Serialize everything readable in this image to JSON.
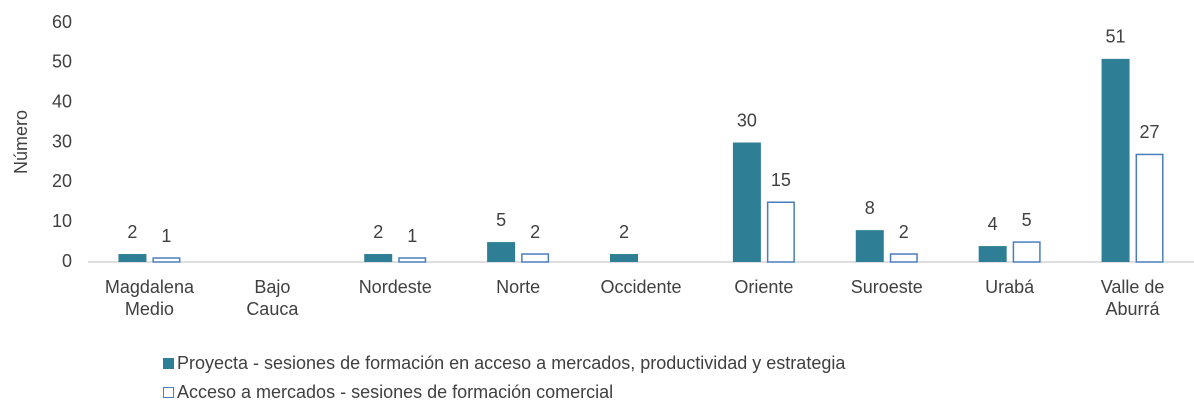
{
  "chart_data": {
    "type": "bar",
    "y_label": "Número",
    "categories": [
      "Magdalena Medio",
      "Bajo Cauca",
      "Nordeste",
      "Norte",
      "Occidente",
      "Oriente",
      "Suroeste",
      "Urabá",
      "Valle de Aburrá"
    ],
    "series": [
      {
        "name": "Proyecta - sesiones de formación en acceso a mercados, productividad y estrategia",
        "color": "#2e7f95",
        "fill": "solid",
        "values": [
          2,
          null,
          2,
          5,
          2,
          30,
          8,
          4,
          51
        ]
      },
      {
        "name": "Acceso a mercados - sesiones de formación comercial",
        "color": "#4a7ebb",
        "fill": "hollow",
        "values": [
          1,
          null,
          1,
          2,
          null,
          15,
          2,
          5,
          27
        ]
      }
    ],
    "ylim": [
      0,
      60
    ],
    "yticks": [
      0,
      10,
      20,
      30,
      40,
      50,
      60
    ],
    "grid": false,
    "legend": "bottom"
  }
}
